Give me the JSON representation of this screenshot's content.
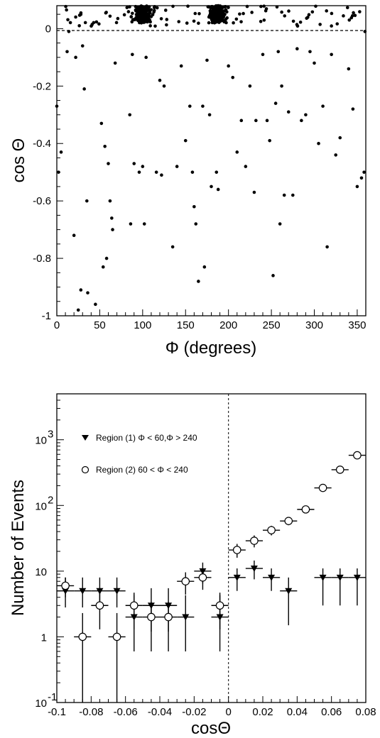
{
  "chart_data": [
    {
      "type": "scatter",
      "xlabel": "Φ (degrees)",
      "ylabel": "cos Θ",
      "xlim": [
        0,
        360
      ],
      "ylim": [
        -1,
        0.08
      ],
      "x_ticks": [
        0,
        50,
        100,
        150,
        200,
        250,
        300,
        350
      ],
      "x_tick_labels": [
        "0",
        "50",
        "100",
        "150",
        "200",
        "250",
        "300",
        "350"
      ],
      "y_ticks": [
        0,
        -0.2,
        -0.4,
        -0.6,
        -0.8,
        -1
      ],
      "y_tick_labels": [
        "0",
        "-0.2",
        "-0.4",
        "-0.6",
        "-0.8",
        "-1"
      ],
      "reference_line": {
        "y": 0,
        "style": "dashed"
      },
      "points": [
        [
          0,
          -0.27
        ],
        [
          2,
          -0.5
        ],
        [
          5,
          -0.43
        ],
        [
          12,
          -0.08
        ],
        [
          14,
          -0.01
        ],
        [
          20,
          -0.72
        ],
        [
          22,
          -0.1
        ],
        [
          25,
          -0.98
        ],
        [
          28,
          -0.91
        ],
        [
          30,
          -0.06
        ],
        [
          32,
          -0.21
        ],
        [
          35,
          -0.6
        ],
        [
          36,
          -0.92
        ],
        [
          45,
          -0.96
        ],
        [
          52,
          -0.33
        ],
        [
          54,
          -0.83
        ],
        [
          56,
          -0.41
        ],
        [
          58,
          -0.8
        ],
        [
          60,
          -0.47
        ],
        [
          62,
          -0.6
        ],
        [
          64,
          -0.66
        ],
        [
          65,
          -0.7
        ],
        [
          68,
          -0.12
        ],
        [
          85,
          -0.3
        ],
        [
          86,
          -0.68
        ],
        [
          88,
          -0.09
        ],
        [
          90,
          -0.47
        ],
        [
          96,
          -0.5
        ],
        [
          100,
          -0.48
        ],
        [
          102,
          -0.68
        ],
        [
          104,
          -0.1
        ],
        [
          116,
          -0.5
        ],
        [
          120,
          -0.18
        ],
        [
          122,
          -0.51
        ],
        [
          125,
          -0.2
        ],
        [
          135,
          -0.76
        ],
        [
          140,
          -0.48
        ],
        [
          145,
          -0.13
        ],
        [
          150,
          -0.39
        ],
        [
          155,
          -0.27
        ],
        [
          158,
          -0.5
        ],
        [
          160,
          -0.62
        ],
        [
          162,
          -0.68
        ],
        [
          165,
          -0.88
        ],
        [
          170,
          -0.27
        ],
        [
          172,
          -0.83
        ],
        [
          175,
          -0.11
        ],
        [
          178,
          -0.3
        ],
        [
          180,
          -0.55
        ],
        [
          186,
          -0.5
        ],
        [
          188,
          -0.56
        ],
        [
          200,
          -0.13
        ],
        [
          205,
          -0.17
        ],
        [
          210,
          -0.43
        ],
        [
          215,
          -0.32
        ],
        [
          220,
          -0.48
        ],
        [
          225,
          -0.2
        ],
        [
          230,
          -0.57
        ],
        [
          232,
          -0.32
        ],
        [
          240,
          -0.09
        ],
        [
          245,
          -0.32
        ],
        [
          248,
          -0.39
        ],
        [
          252,
          -0.86
        ],
        [
          255,
          -0.26
        ],
        [
          258,
          -0.08
        ],
        [
          260,
          -0.68
        ],
        [
          262,
          -0.2
        ],
        [
          265,
          -0.58
        ],
        [
          270,
          -0.29
        ],
        [
          275,
          -0.58
        ],
        [
          280,
          -0.07
        ],
        [
          285,
          -0.32
        ],
        [
          290,
          -0.3
        ],
        [
          295,
          -0.08
        ],
        [
          300,
          -0.12
        ],
        [
          305,
          -0.4
        ],
        [
          310,
          -0.27
        ],
        [
          315,
          -0.76
        ],
        [
          320,
          -0.09
        ],
        [
          325,
          -0.44
        ],
        [
          330,
          -0.38
        ],
        [
          340,
          -0.14
        ],
        [
          345,
          -0.28
        ],
        [
          350,
          -0.55
        ],
        [
          355,
          -0.52
        ],
        [
          358,
          -0.5
        ],
        [
          359,
          -0.01
        ]
      ],
      "clusters": [
        {
          "x_center": 100,
          "x_spread": 18,
          "y_min": 0.02,
          "y_max": 0.08,
          "count": 160
        },
        {
          "x_center": 187,
          "x_spread": 14,
          "y_min": 0.02,
          "y_max": 0.08,
          "count": 150
        },
        {
          "x_min": 8,
          "x_max": 355,
          "y_min": 0.005,
          "y_max": 0.08,
          "count": 90
        }
      ]
    },
    {
      "type": "scatter",
      "y_scale": "log",
      "xlabel": "cosΘ",
      "ylabel": "Number of Events",
      "xlim": [
        -0.1,
        0.08
      ],
      "ylim": [
        0.1,
        5000
      ],
      "x_ticks": [
        -0.1,
        -0.08,
        -0.06,
        -0.04,
        -0.02,
        0,
        0.02,
        0.04,
        0.06,
        0.08
      ],
      "x_tick_labels": [
        "-0.1",
        "-0.08",
        "-0.06",
        "-0.04",
        "-0.02",
        "0",
        "0.02",
        "0.04",
        "0.06",
        "0.08"
      ],
      "y_ticks": [
        0.1,
        1,
        10,
        100,
        1000
      ],
      "y_tick_labels": [
        {
          "base": "10",
          "exp": "-1"
        },
        {
          "base": "1",
          "exp": ""
        },
        {
          "base": "10",
          "exp": ""
        },
        {
          "base": "10",
          "exp": "2"
        },
        {
          "base": "10",
          "exp": "3"
        }
      ],
      "reference_line": {
        "x": 0,
        "style": "dashed"
      },
      "bin_half_width": 0.005,
      "series": [
        {
          "name": "Region (1) Φ < 60,Φ > 240",
          "marker": "filled-triangle-down",
          "points": [
            {
              "x": -0.095,
              "y": 5,
              "lo": 2.8,
              "hi": 8
            },
            {
              "x": -0.085,
              "y": 5,
              "lo": 2.8,
              "hi": 8
            },
            {
              "x": -0.075,
              "y": 5,
              "lo": 2.8,
              "hi": 8
            },
            {
              "x": -0.065,
              "y": 5,
              "lo": 2.8,
              "hi": 8
            },
            {
              "x": -0.055,
              "y": 2,
              "lo": 0.6,
              "hi": 4.3
            },
            {
              "x": -0.045,
              "y": 3,
              "lo": 1.2,
              "hi": 5.5
            },
            {
              "x": -0.035,
              "y": 3,
              "lo": 1.2,
              "hi": 5.5
            },
            {
              "x": -0.025,
              "y": 2,
              "lo": 0.6,
              "hi": 4.3
            },
            {
              "x": -0.015,
              "y": 10,
              "lo": 6.5,
              "hi": 13.5
            },
            {
              "x": -0.005,
              "y": 2,
              "lo": 0.6,
              "hi": 4.3
            },
            {
              "x": 0.005,
              "y": 8,
              "lo": 5,
              "hi": 11
            },
            {
              "x": 0.015,
              "y": 11,
              "lo": 7.5,
              "hi": 14.5
            },
            {
              "x": 0.025,
              "y": 8,
              "lo": 5,
              "hi": 11
            },
            {
              "x": 0.035,
              "y": 5,
              "lo": 1.5,
              "hi": 8
            },
            {
              "x": 0.055,
              "y": 8,
              "lo": 3,
              "hi": 11
            },
            {
              "x": 0.065,
              "y": 8,
              "lo": 3,
              "hi": 11
            },
            {
              "x": 0.075,
              "y": 8,
              "lo": 3,
              "hi": 11
            }
          ]
        },
        {
          "name": "Region (2) 60 < Φ < 240",
          "marker": "open-circle",
          "points": [
            {
              "x": -0.095,
              "y": 6,
              "lo": 4,
              "hi": 8
            },
            {
              "x": -0.085,
              "y": 1,
              "lo": 0.1,
              "hi": 2.3
            },
            {
              "x": -0.075,
              "y": 3,
              "lo": 1.3,
              "hi": 4.7
            },
            {
              "x": -0.065,
              "y": 1,
              "lo": 0.1,
              "hi": 2.3
            },
            {
              "x": -0.055,
              "y": 3,
              "lo": 1.3,
              "hi": 4.7
            },
            {
              "x": -0.045,
              "y": 2,
              "lo": 0.6,
              "hi": 3.4
            },
            {
              "x": -0.035,
              "y": 2,
              "lo": 0.6,
              "hi": 3.4
            },
            {
              "x": -0.025,
              "y": 7,
              "lo": 4.4,
              "hi": 9.6
            },
            {
              "x": -0.015,
              "y": 8,
              "lo": 5.2,
              "hi": 10.8
            },
            {
              "x": -0.005,
              "y": 3,
              "lo": 1.3,
              "hi": 4.7
            },
            {
              "x": 0.005,
              "y": 21,
              "lo": 16,
              "hi": 26
            },
            {
              "x": 0.015,
              "y": 29,
              "lo": 23,
              "hi": 35
            },
            {
              "x": 0.025,
              "y": 42,
              "lo": 35,
              "hi": 49
            },
            {
              "x": 0.035,
              "y": 58,
              "lo": 50,
              "hi": 66
            },
            {
              "x": 0.045,
              "y": 87,
              "lo": 78,
              "hi": 96
            },
            {
              "x": 0.055,
              "y": 185,
              "lo": 171,
              "hi": 199
            },
            {
              "x": 0.065,
              "y": 350,
              "lo": 331,
              "hi": 369
            },
            {
              "x": 0.075,
              "y": 580,
              "lo": 556,
              "hi": 604
            }
          ]
        }
      ],
      "legend_placement": "top-left"
    }
  ]
}
